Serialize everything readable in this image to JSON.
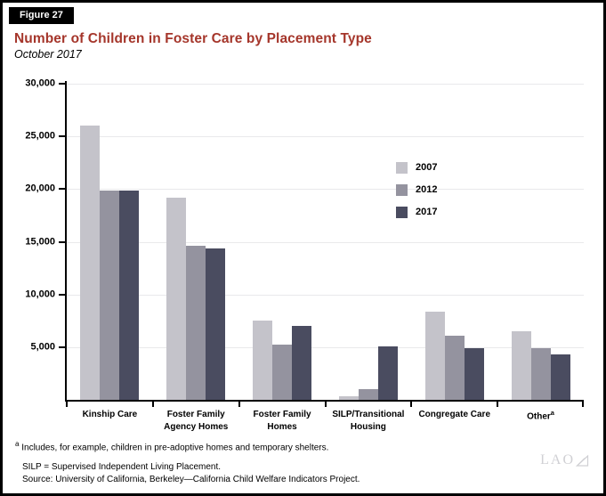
{
  "figure": {
    "label": "Figure 27",
    "title": "Number of Children in Foster Care by Placement Type",
    "subtitle": "October 2017"
  },
  "chart_data": {
    "type": "bar",
    "title": "Number of Children in Foster Care by Placement Type",
    "subtitle": "October 2017",
    "categories": [
      "Kinship Care",
      "Foster Family Agency Homes",
      "Foster Family Homes",
      "SILP/Transitional Housing",
      "Congregate Care",
      "Other"
    ],
    "category_label_lines": [
      [
        "Kinship Care"
      ],
      [
        "Foster Family",
        "Agency Homes"
      ],
      [
        "Foster Family",
        "Homes"
      ],
      [
        "SILP/Transitional",
        "Housing"
      ],
      [
        "Congregate Care"
      ],
      [
        "Other"
      ]
    ],
    "category_superscripts": [
      "",
      "",
      "",
      "",
      "",
      "a"
    ],
    "series": [
      {
        "name": "2007",
        "color": "#c4c3ca",
        "values": [
          26000,
          19200,
          7500,
          300,
          8400,
          6500
        ]
      },
      {
        "name": "2012",
        "color": "#94939f",
        "values": [
          19900,
          14600,
          5200,
          1000,
          6100,
          4900
        ]
      },
      {
        "name": "2017",
        "color": "#4a4c60",
        "values": [
          19900,
          14400,
          7000,
          5100,
          4900,
          4300
        ]
      }
    ],
    "xlabel": "",
    "ylabel": "",
    "ylim": [
      0,
      30000
    ],
    "ytick_interval": 5000,
    "ytick_labels": [
      "5,000",
      "10,000",
      "15,000",
      "20,000",
      "25,000",
      "30,000"
    ],
    "grid": true,
    "legend_position": "inside-upper-right"
  },
  "footnotes": {
    "a_marker": "a",
    "a_text": " Includes, for example, children in pre-adoptive homes and temporary shelters.",
    "silp": "SILP = Supervised Independent Living Placement.",
    "source": "Source: University of California, Berkeley—California Child Welfare Indicators Project."
  },
  "watermark": "LAO",
  "colors": {
    "title_red": "#a5362b",
    "series_2007": "#c4c3ca",
    "series_2012": "#94939f",
    "series_2017": "#4a4c60",
    "gridline": "#e9e9eb",
    "figure_label_bg": "#000000",
    "watermark_gray": "#d0d0d4"
  }
}
